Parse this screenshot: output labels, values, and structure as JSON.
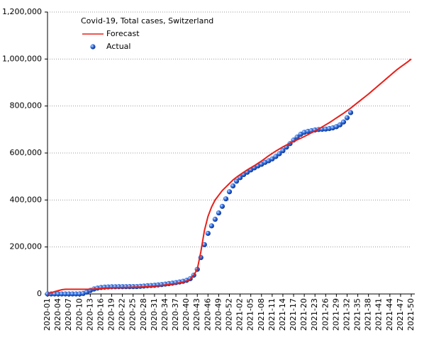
{
  "chart_data": {
    "type": "line",
    "title": "Covid-19, Total cases, Switzerland",
    "categories": [
      "2020-01",
      null,
      null,
      "2020-04",
      null,
      null,
      "2020-07",
      null,
      null,
      "2020-10",
      null,
      null,
      "2020-13",
      null,
      null,
      "2020-16",
      null,
      null,
      "2020-19",
      null,
      null,
      "2020-22",
      null,
      null,
      "2020-25",
      null,
      null,
      "2020-28",
      null,
      null,
      "2020-31",
      null,
      null,
      "2020-34",
      null,
      null,
      "2020-37",
      null,
      null,
      "2020-40",
      null,
      null,
      "2020-43",
      null,
      null,
      "2020-46",
      null,
      null,
      "2020-49",
      null,
      null,
      "2020-52",
      null,
      null,
      "2021-02",
      null,
      null,
      "2021-05",
      null,
      null,
      "2021-08",
      null,
      null,
      "2021-11",
      null,
      null,
      "2021-14",
      null,
      null,
      "2021-17",
      null,
      null,
      "2021-20",
      null,
      null,
      "2021-23",
      null,
      null,
      "2021-26",
      null,
      null,
      "2021-29",
      null,
      null,
      "2021-32",
      null,
      null,
      "2021-35",
      null,
      null,
      "2021-38",
      null,
      null,
      "2021-41",
      null,
      null,
      "2021-44",
      null,
      null,
      "2021-47",
      null,
      null,
      "2021-50"
    ],
    "series": [
      {
        "name": "Forecast",
        "color": "#e8201a",
        "style": "line",
        "values": [
          0,
          5000,
          10000,
          14000,
          18000,
          20000,
          20000,
          20000,
          20000,
          20000,
          20000,
          20000,
          20000,
          21000,
          22000,
          23000,
          24000,
          25000,
          25500,
          26000,
          26500,
          27000,
          27500,
          28000,
          28500,
          29000,
          29500,
          30000,
          31000,
          32000,
          33000,
          34500,
          36000,
          38000,
          40000,
          42000,
          44000,
          47000,
          50000,
          55000,
          62000,
          80000,
          105000,
          180000,
          270000,
          330000,
          370000,
          400000,
          420000,
          440000,
          455000,
          470000,
          485000,
          497000,
          508000,
          518000,
          528000,
          537000,
          546000,
          556000,
          566000,
          577000,
          588000,
          598000,
          608000,
          617000,
          626000,
          634000,
          642000,
          649000,
          656000,
          663000,
          670000,
          678000,
          686000,
          694000,
          702000,
          711000,
          720000,
          729000,
          739000,
          749000,
          759000,
          769000,
          780000,
          791000,
          803000,
          815000,
          827000,
          839000,
          851000,
          864000,
          877000,
          890000,
          903000,
          916000,
          929000,
          942000,
          955000,
          966000,
          977000,
          988000,
          1000000
        ]
      },
      {
        "name": "Actual",
        "color": "#1f5fd6",
        "style": "dots",
        "values": [
          0,
          0,
          0,
          0,
          0,
          0,
          0,
          0,
          50,
          300,
          2200,
          8000,
          15000,
          21000,
          25000,
          27500,
          29000,
          30000,
          30500,
          30700,
          30900,
          31000,
          31100,
          31200,
          31300,
          31500,
          32500,
          33500,
          35000,
          36000,
          37000,
          38500,
          40000,
          42000,
          44000,
          46000,
          48500,
          51000,
          54000,
          58000,
          65000,
          80000,
          105000,
          155000,
          210000,
          258000,
          290000,
          318000,
          345000,
          373000,
          405000,
          435000,
          460000,
          480000,
          495000,
          508000,
          518000,
          528000,
          537000,
          545000,
          552000,
          560000,
          567000,
          575000,
          585000,
          597000,
          610000,
          625000,
          640000,
          655000,
          668000,
          680000,
          688000,
          692000,
          695000,
          698000,
          700000,
          701000,
          702000,
          704000,
          707000,
          712000,
          720000,
          732000,
          750000,
          772000,
          null,
          null,
          null,
          null,
          null,
          null,
          null,
          null,
          null,
          null,
          null,
          null,
          null,
          null,
          null,
          null,
          null
        ]
      }
    ],
    "ylim": [
      0,
      1200000
    ],
    "yticks": [
      0,
      {
        "value": 200000,
        "label": "200,000"
      },
      {
        "value": 400000,
        "label": "400,000"
      },
      {
        "value": 600000,
        "label": "600,000"
      },
      {
        "value": 800000,
        "label": "800,000"
      },
      {
        "value": 1000000,
        "label": "1,000,000"
      },
      {
        "value": 1200000,
        "label": "1,200,000"
      }
    ],
    "grid": true,
    "legend": "top-left"
  }
}
